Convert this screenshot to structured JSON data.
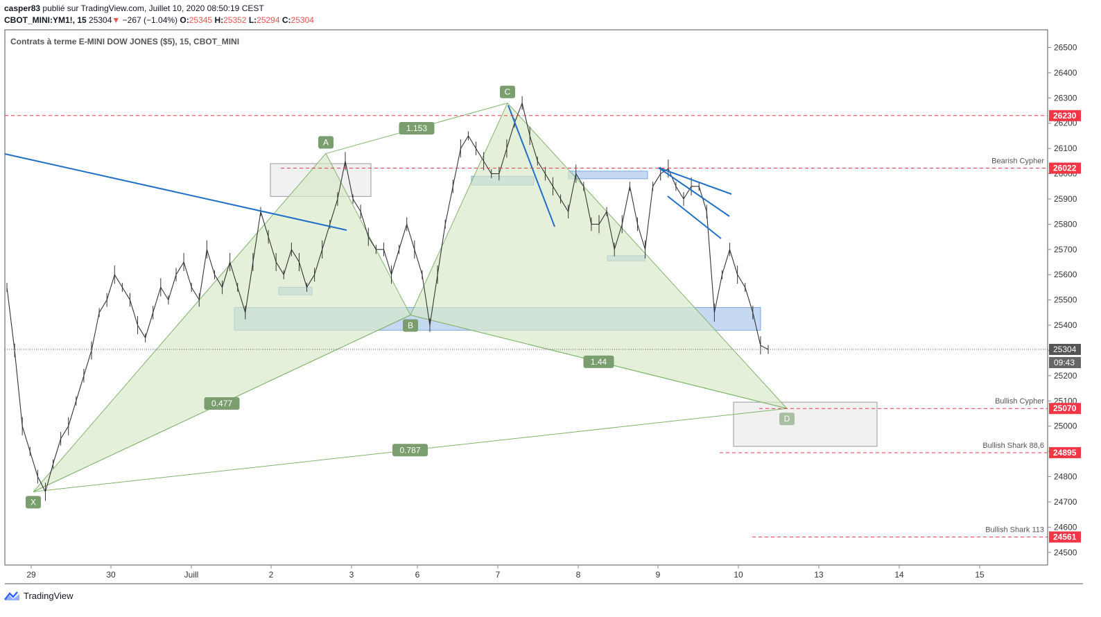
{
  "header": {
    "publisher": "casper83",
    "published_on": "publié sur TradingView.com, Juillet 10, 2020 08:50:19 CEST",
    "symbol": "CBOT_MINI:YM1!, 15",
    "last": "25304",
    "change": "−267 (−1.04%)",
    "o_label": "O:",
    "o": "25345",
    "h_label": "H:",
    "h": "25352",
    "l_label": "L:",
    "l": "25294",
    "c_label": "C:",
    "c": "25304"
  },
  "legend_title": "Contrats à terme E-MINI DOW JONES ($5), 15, CBOT_MINI",
  "footer": {
    "brand": "TradingView"
  },
  "colors": {
    "pattern_fill": "#d7e8c8",
    "pattern_line": "#7fb56b",
    "pattern_label": "#7a9e6e",
    "zone_blue": "#9fc1ea",
    "zone_grey": "#eeeeee",
    "trend_blue": "#1e6fc8",
    "level_red": "#f23645",
    "price_grey": "#333333"
  },
  "chart_data": {
    "type": "line",
    "y_axis": {
      "min": 24450,
      "max": 26570,
      "ticks": [
        24500,
        24600,
        24700,
        24800,
        24900,
        25000,
        25100,
        25200,
        25300,
        25400,
        25500,
        25600,
        25700,
        25800,
        25900,
        26000,
        26100,
        26200,
        26300,
        26400,
        26500
      ]
    },
    "x_ticks": [
      "29",
      "30",
      "Juill",
      "2",
      "3",
      "6",
      "7",
      "8",
      "9",
      "10",
      "13",
      "14",
      "15"
    ],
    "price_series": {
      "name": "YM1! 15",
      "values": [
        25550,
        25300,
        25000,
        24900,
        24800,
        24740,
        24850,
        24950,
        25000,
        25100,
        25200,
        25300,
        25450,
        25500,
        25600,
        25550,
        25500,
        25400,
        25350,
        25450,
        25550,
        25500,
        25600,
        25650,
        25550,
        25500,
        25700,
        25600,
        25550,
        25650,
        25550,
        25450,
        25650,
        25850,
        25750,
        25650,
        25600,
        25700,
        25650,
        25550,
        25600,
        25700,
        25800,
        25900,
        26050,
        25900,
        25850,
        25750,
        25700,
        25700,
        25600,
        25700,
        25800,
        25700,
        25600,
        25400,
        25600,
        25800,
        25950,
        26100,
        26150,
        26100,
        26050,
        26000,
        26000,
        26100,
        26200,
        26280,
        26150,
        26050,
        26000,
        25950,
        25900,
        25850,
        26000,
        25950,
        25800,
        25800,
        25850,
        25700,
        25800,
        25950,
        25800,
        25700,
        25950,
        26000,
        26020,
        25950,
        25900,
        25950,
        25950,
        25850,
        25450,
        25600,
        25700,
        25600,
        25550,
        25450,
        25320,
        25304
      ]
    },
    "last_price": {
      "value": 25304,
      "label": "25304",
      "countdown": "09:43"
    },
    "pattern_points": [
      {
        "label": "X",
        "value": 24740
      },
      {
        "label": "A",
        "value": 26080
      },
      {
        "label": "B",
        "value": 25440
      },
      {
        "label": "C",
        "value": 26280
      },
      {
        "label": "D",
        "value": 25070
      }
    ],
    "ratios": [
      {
        "label": "1.153"
      },
      {
        "label": "0.477"
      },
      {
        "label": "0.787"
      },
      {
        "label": "1.44"
      }
    ],
    "levels": [
      {
        "value": 26230,
        "label": "26230",
        "name": ""
      },
      {
        "value": 26022,
        "label": "26022",
        "name": "Bearish Cypher"
      },
      {
        "value": 25070,
        "label": "25070",
        "name": "Bullish Cypher"
      },
      {
        "value": 24895,
        "label": "24895",
        "name": "Bullish Shark 88,6"
      },
      {
        "value": 24561,
        "label": "24561",
        "name": "Bullish Shark 113"
      }
    ],
    "zones_blue": [
      {
        "top": 25470,
        "bottom": 25380
      },
      {
        "top": 25550,
        "bottom": 25520
      },
      {
        "top": 25990,
        "bottom": 25955
      },
      {
        "top": 26010,
        "bottom": 25980
      },
      {
        "top": 25675,
        "bottom": 25655
      }
    ],
    "zones_grey": [
      {
        "top": 26040,
        "bottom": 25910
      },
      {
        "top": 25095,
        "bottom": 24920
      }
    ],
    "grid": true
  }
}
